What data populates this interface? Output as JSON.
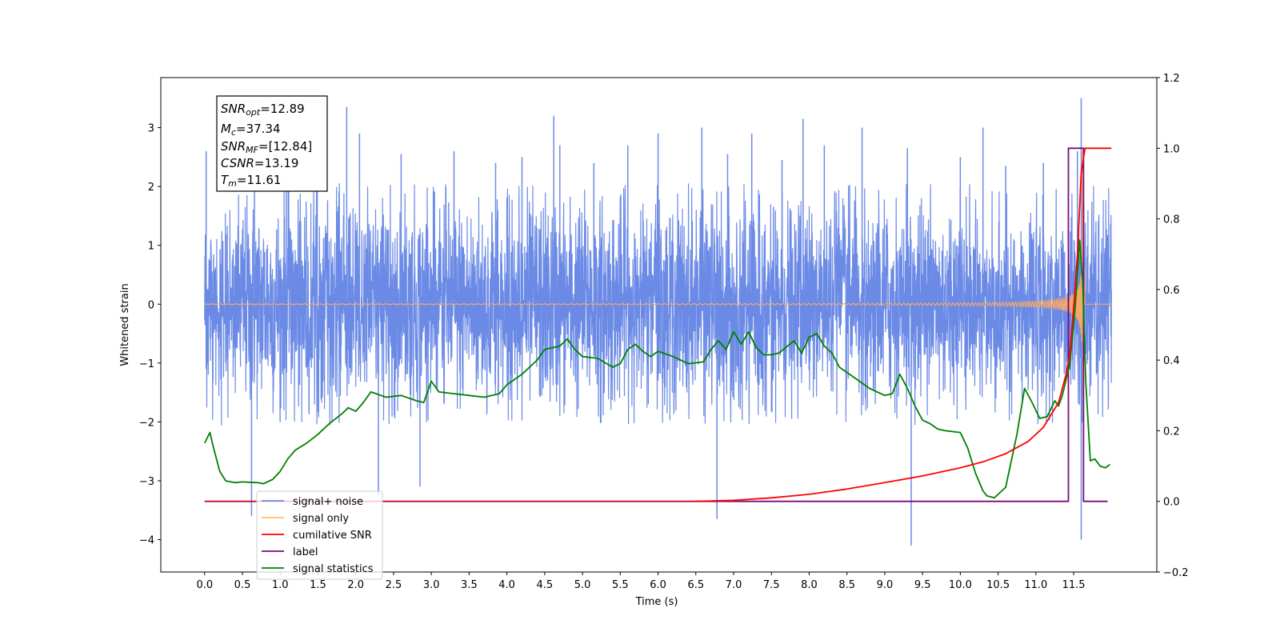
{
  "chart_data": {
    "type": "line",
    "xlabel": "Time (s)",
    "ylabel": "Whitened strain",
    "xlim": [
      -0.58,
      12.6
    ],
    "ylim": [
      -4.55,
      3.85
    ],
    "y2lim": [
      -0.2,
      1.2
    ],
    "x_ticks": [
      "0.0",
      "0.5",
      "1.0",
      "1.5",
      "2.0",
      "2.5",
      "3.0",
      "3.5",
      "4.0",
      "4.5",
      "5.0",
      "5.5",
      "6.0",
      "6.5",
      "7.0",
      "7.5",
      "8.0",
      "8.5",
      "9.0",
      "9.5",
      "10.0",
      "10.5",
      "11.0",
      "11.5"
    ],
    "y_ticks": [
      "3",
      "2",
      "1",
      "0",
      "−1",
      "−2",
      "−3",
      "−4"
    ],
    "y2_ticks": [
      "1.2",
      "1.0",
      "0.8",
      "0.6",
      "0.4",
      "0.2",
      "0.0",
      "−0.2"
    ],
    "stats": [
      {
        "sym": "SNR",
        "sub": "opt",
        "val": "=12.89"
      },
      {
        "sym": "M",
        "sub": "c",
        "val": "=37.34"
      },
      {
        "sym": "SNR",
        "sub": "MF",
        "val": "=[12.84]"
      },
      {
        "sym": "CSNR",
        "sub": "",
        "val": "=13.19"
      },
      {
        "sym": "T",
        "sub": "m",
        "val": "=11.61"
      }
    ],
    "legend": {
      "position": "lower-left",
      "entries": [
        {
          "label": "signal+ noise",
          "color": "#6b8ae6"
        },
        {
          "label": "signal only",
          "color": "#ffbf5a"
        },
        {
          "label": "cumilative SNR",
          "color": "#ff0000"
        },
        {
          "label": "label",
          "color": "#7a0a7a"
        },
        {
          "label": "signal statistics",
          "color": "#008000"
        }
      ]
    },
    "colors": {
      "noise": "#6b8ae6",
      "signal": "#f4a86a",
      "snr": "#ff0000",
      "label": "#7a0a7a",
      "stats": "#008000"
    },
    "noise_spikes": [
      [
        0.02,
        2.6
      ],
      [
        0.02,
        -1.1
      ],
      [
        0.62,
        -3.6
      ],
      [
        0.66,
        2.5
      ],
      [
        1.08,
        2.3
      ],
      [
        1.49,
        2.7
      ],
      [
        1.88,
        3.35
      ],
      [
        2.05,
        2.9
      ],
      [
        2.3,
        -3.25
      ],
      [
        2.6,
        2.55
      ],
      [
        2.85,
        -3.1
      ],
      [
        3.3,
        2.6
      ],
      [
        3.85,
        2.4
      ],
      [
        4.2,
        2.5
      ],
      [
        4.62,
        3.2
      ],
      [
        4.7,
        2.7
      ],
      [
        5.15,
        2.4
      ],
      [
        5.6,
        2.7
      ],
      [
        6.0,
        2.9
      ],
      [
        6.58,
        3.0
      ],
      [
        6.78,
        -3.65
      ],
      [
        6.92,
        2.55
      ],
      [
        7.24,
        2.9
      ],
      [
        7.64,
        2.45
      ],
      [
        7.92,
        3.15
      ],
      [
        8.2,
        2.7
      ],
      [
        8.7,
        3.0
      ],
      [
        9.3,
        2.65
      ],
      [
        9.35,
        -4.1
      ],
      [
        10.0,
        2.5
      ],
      [
        10.3,
        3.0
      ],
      [
        10.6,
        2.35
      ],
      [
        11.1,
        2.4
      ],
      [
        11.55,
        2.6
      ],
      [
        11.6,
        3.5
      ],
      [
        11.6,
        -4.0
      ]
    ],
    "series": [
      {
        "name": "cumilative SNR",
        "axis": "right",
        "x": [
          6.5,
          7.0,
          7.5,
          8.0,
          8.5,
          9.0,
          9.5,
          10.0,
          10.3,
          10.6,
          10.9,
          11.1,
          11.3,
          11.4,
          11.45,
          11.5,
          11.55,
          11.6,
          11.65,
          11.7,
          11.8,
          12.0
        ],
        "y": [
          0.0,
          0.003,
          0.01,
          0.02,
          0.035,
          0.053,
          0.072,
          0.095,
          0.112,
          0.135,
          0.17,
          0.21,
          0.28,
          0.36,
          0.42,
          0.55,
          0.7,
          0.93,
          1.0,
          1.0,
          1.0,
          1.0
        ]
      },
      {
        "name": "label",
        "axis": "right",
        "x": [
          0.0,
          11.43,
          11.43,
          11.63,
          11.63,
          11.95
        ],
        "y": [
          0.0,
          0.0,
          1.0,
          1.0,
          0.0,
          0.0
        ]
      },
      {
        "name": "signal statistics",
        "axis": "right",
        "x": [
          0.0,
          0.07,
          0.12,
          0.2,
          0.28,
          0.4,
          0.5,
          0.7,
          0.78,
          0.9,
          1.0,
          1.1,
          1.2,
          1.35,
          1.5,
          1.65,
          1.8,
          1.9,
          2.0,
          2.1,
          2.2,
          2.4,
          2.6,
          2.8,
          2.9,
          3.0,
          3.1,
          3.3,
          3.5,
          3.7,
          3.9,
          4.0,
          4.2,
          4.4,
          4.5,
          4.7,
          4.8,
          4.9,
          5.0,
          5.2,
          5.4,
          5.5,
          5.6,
          5.7,
          5.8,
          5.9,
          6.0,
          6.2,
          6.4,
          6.6,
          6.7,
          6.8,
          6.9,
          7.0,
          7.1,
          7.2,
          7.3,
          7.4,
          7.5,
          7.6,
          7.8,
          7.9,
          8.0,
          8.1,
          8.2,
          8.3,
          8.4,
          8.6,
          8.8,
          9.0,
          9.1,
          9.2,
          9.3,
          9.4,
          9.5,
          9.6,
          9.7,
          9.8,
          10.0,
          10.1,
          10.2,
          10.3,
          10.35,
          10.45,
          10.5,
          10.6,
          10.75,
          10.85,
          10.95,
          11.05,
          11.15,
          11.25,
          11.3,
          11.35,
          11.45,
          11.52,
          11.58,
          11.62,
          11.66,
          11.72,
          11.78,
          11.85,
          11.92,
          11.98
        ],
        "y": [
          0.165,
          0.195,
          0.15,
          0.085,
          0.058,
          0.053,
          0.055,
          0.053,
          0.05,
          0.062,
          0.085,
          0.12,
          0.145,
          0.165,
          0.19,
          0.22,
          0.245,
          0.265,
          0.255,
          0.28,
          0.31,
          0.295,
          0.3,
          0.285,
          0.28,
          0.34,
          0.31,
          0.305,
          0.3,
          0.295,
          0.305,
          0.33,
          0.36,
          0.4,
          0.43,
          0.44,
          0.46,
          0.43,
          0.41,
          0.405,
          0.38,
          0.39,
          0.43,
          0.445,
          0.425,
          0.41,
          0.425,
          0.41,
          0.39,
          0.395,
          0.43,
          0.455,
          0.43,
          0.48,
          0.445,
          0.48,
          0.435,
          0.415,
          0.415,
          0.42,
          0.455,
          0.42,
          0.465,
          0.475,
          0.44,
          0.42,
          0.38,
          0.35,
          0.32,
          0.3,
          0.305,
          0.36,
          0.32,
          0.27,
          0.23,
          0.22,
          0.205,
          0.2,
          0.195,
          0.15,
          0.08,
          0.03,
          0.016,
          0.01,
          0.02,
          0.04,
          0.19,
          0.32,
          0.28,
          0.235,
          0.24,
          0.285,
          0.27,
          0.3,
          0.39,
          0.55,
          0.74,
          0.62,
          0.34,
          0.115,
          0.12,
          0.1,
          0.095,
          0.105
        ]
      }
    ]
  }
}
